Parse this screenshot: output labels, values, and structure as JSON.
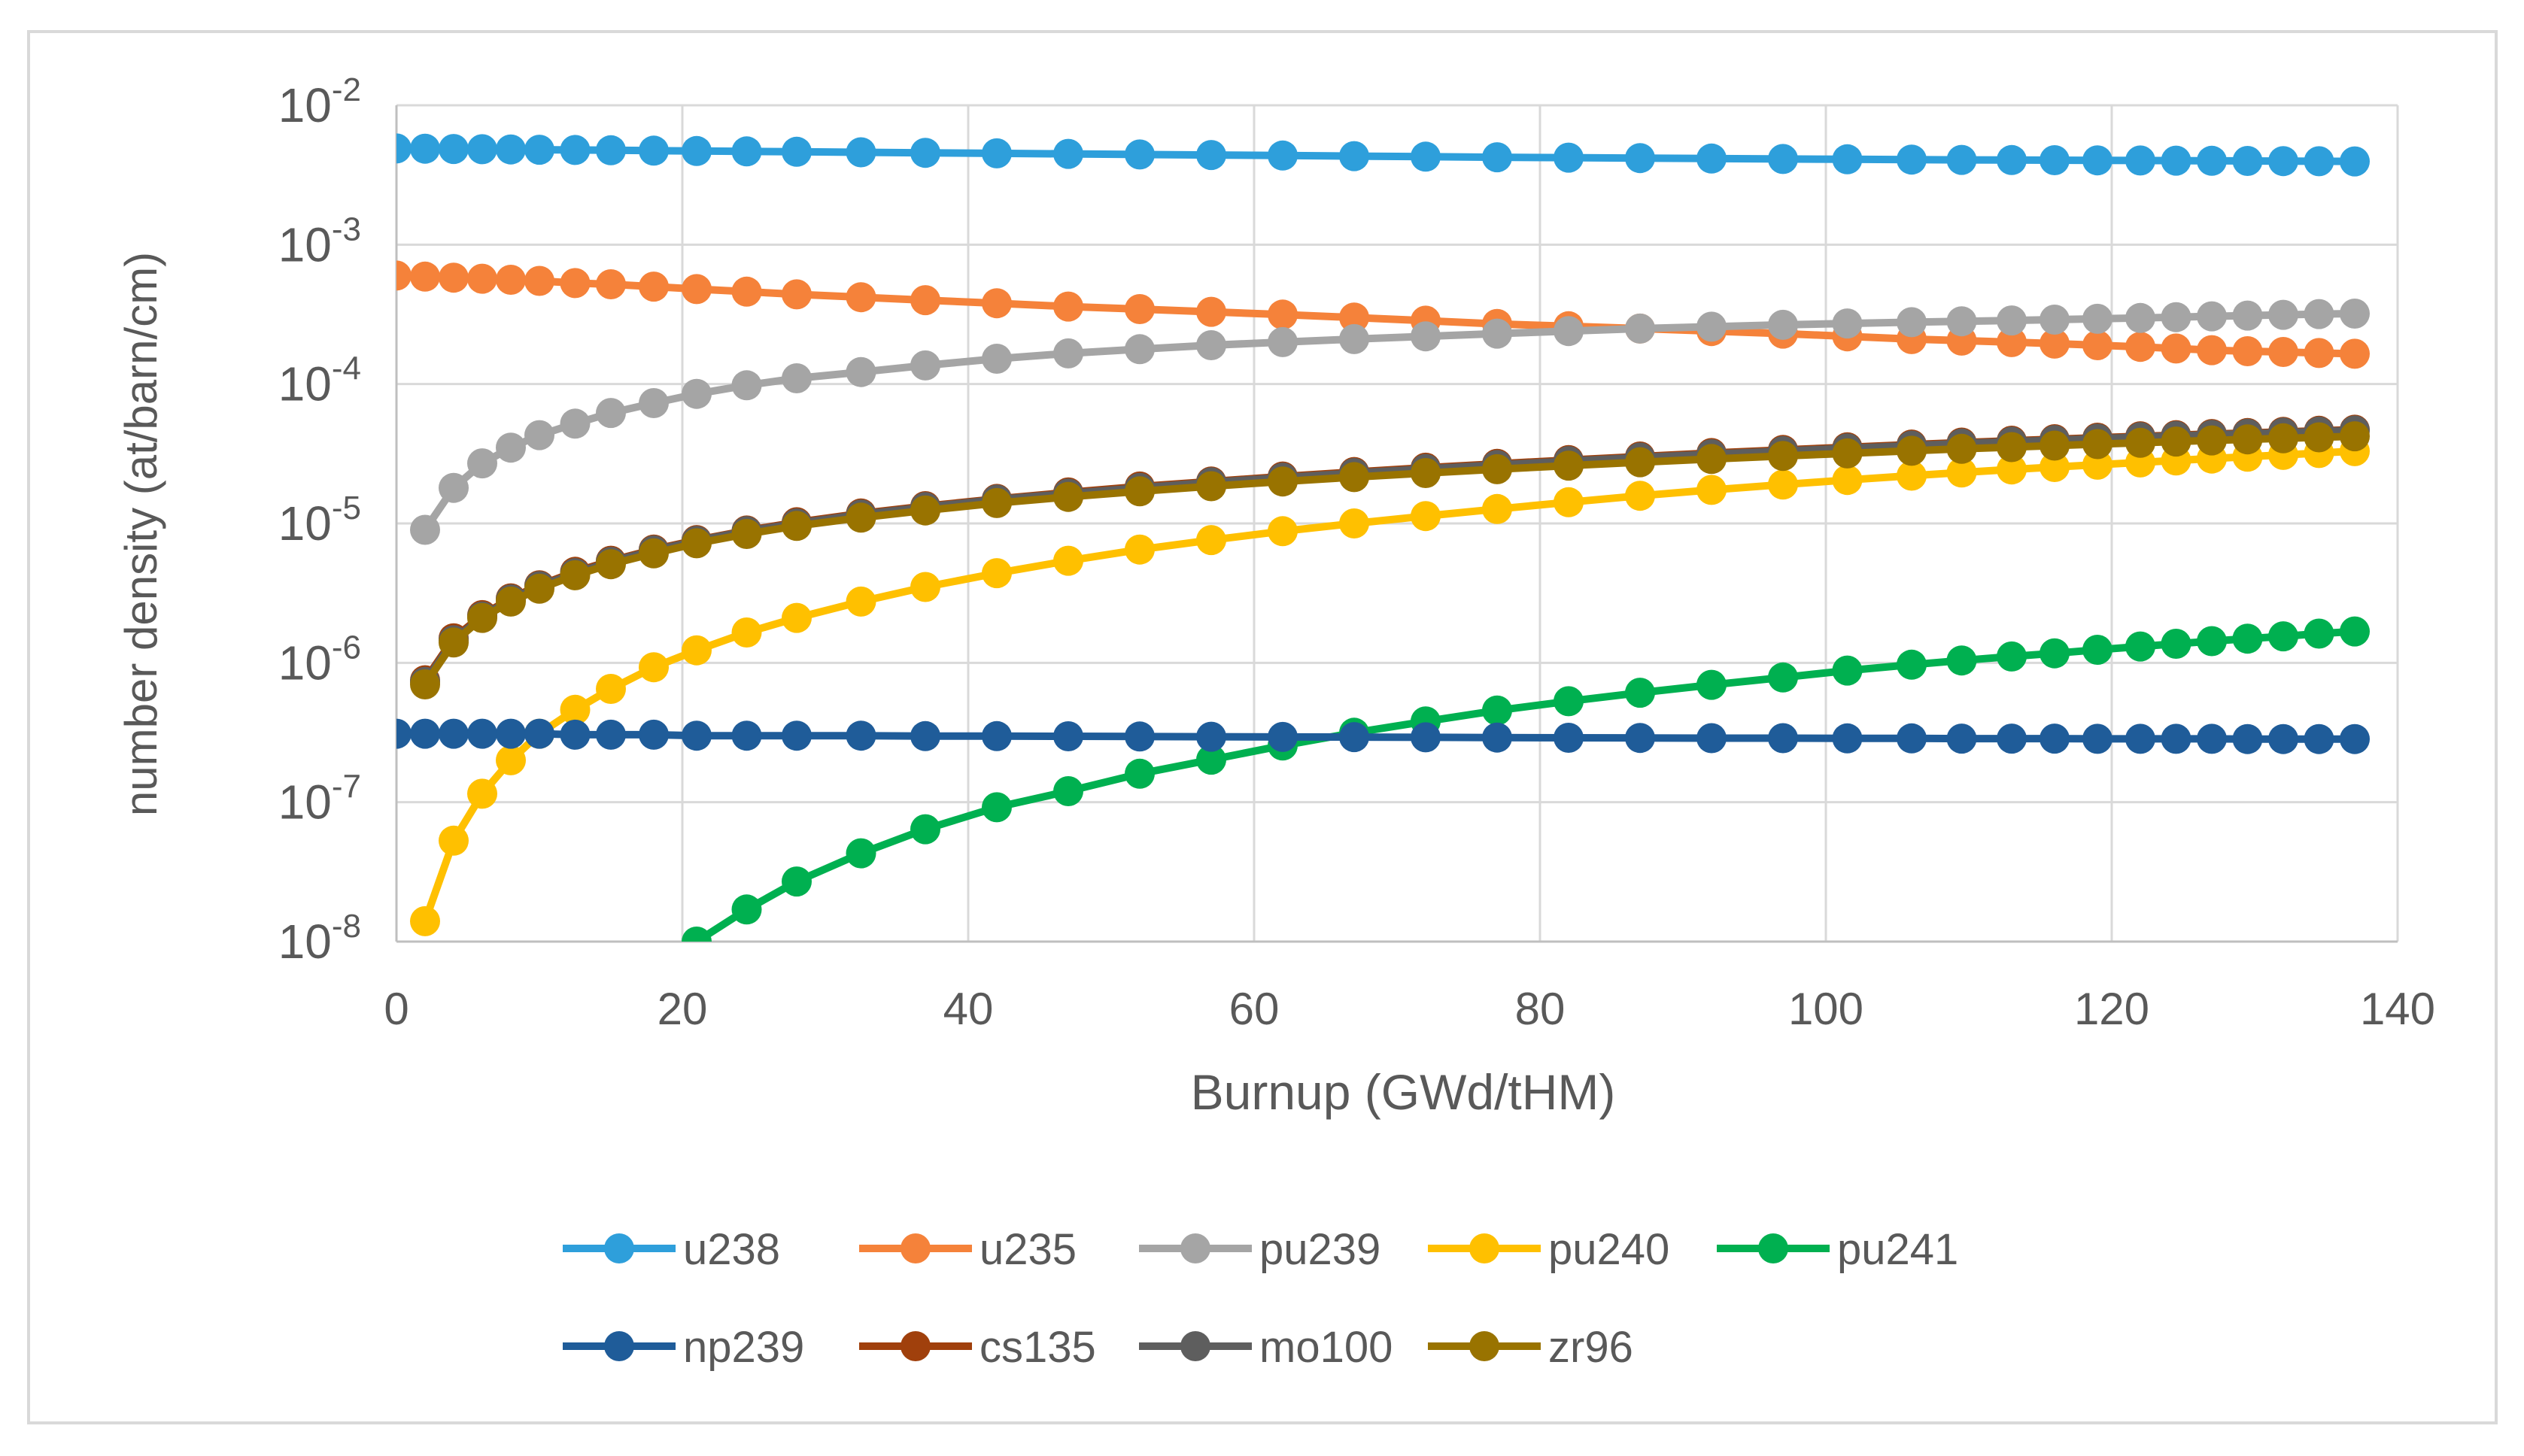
{
  "chart_data": {
    "type": "line",
    "title": "",
    "xlabel": "Burnup (GWd/tHM)",
    "ylabel": "number density (at/barn/cm)",
    "xlim": [
      0,
      140
    ],
    "x_ticks": [
      0,
      20,
      40,
      60,
      80,
      100,
      120,
      140
    ],
    "x_tick_labels": [
      "0",
      "20",
      "40",
      "60",
      "80",
      "100",
      "120",
      "140"
    ],
    "yscale": "log",
    "ylim": [
      1e-08,
      0.01
    ],
    "y_tick_exponents": [
      "-8",
      "-7",
      "-6",
      "-5",
      "-4",
      "-3",
      "-2"
    ],
    "y_tick_base": "10",
    "grid": true,
    "legend_position": "bottom",
    "x": [
      0,
      2,
      4,
      6,
      8,
      10,
      12.5,
      15,
      18,
      21,
      24.5,
      28,
      32.5,
      37,
      42,
      47,
      52,
      57,
      62,
      67,
      72,
      77,
      82,
      87,
      92,
      97,
      101.5,
      106,
      109.5,
      113,
      116,
      119,
      122,
      124.5,
      127,
      129.5,
      132,
      134.5,
      137
    ],
    "series": [
      {
        "name": "u238",
        "color": "#2E9FDB",
        "values": [
          0.0049,
          0.00488,
          0.00486,
          0.00484,
          0.00482,
          0.0048,
          0.00478,
          0.00476,
          0.00473,
          0.0047,
          0.00467,
          0.00464,
          0.0046,
          0.00456,
          0.00452,
          0.00448,
          0.00444,
          0.0044,
          0.00436,
          0.00432,
          0.00428,
          0.00424,
          0.00421,
          0.00418,
          0.00415,
          0.00412,
          0.0041,
          0.00408,
          0.00406,
          0.00405,
          0.00404,
          0.00403,
          0.00402,
          0.00401,
          0.004,
          0.00399,
          0.00398,
          0.00397,
          0.00396
        ]
      },
      {
        "name": "u235",
        "color": "#F5823A",
        "values": [
          0.0006,
          0.00059,
          0.00058,
          0.00057,
          0.00056,
          0.00055,
          0.00053,
          0.00052,
          0.0005,
          0.00048,
          0.00046,
          0.00044,
          0.00042,
          0.0004,
          0.00038,
          0.00036,
          0.000345,
          0.00033,
          0.000315,
          0.0003,
          0.000285,
          0.00027,
          0.00026,
          0.00025,
          0.00024,
          0.00023,
          0.00022,
          0.00021,
          0.000205,
          0.0002,
          0.000195,
          0.00019,
          0.000185,
          0.00018,
          0.000175,
          0.000172,
          0.00017,
          0.000167,
          0.000165
        ]
      },
      {
        "name": "pu239",
        "color": "#A5A5A5",
        "values": [
          null,
          9e-06,
          1.8e-05,
          2.7e-05,
          3.5e-05,
          4.3e-05,
          5.2e-05,
          6.2e-05,
          7.3e-05,
          8.5e-05,
          9.8e-05,
          0.00011,
          0.000122,
          0.000136,
          0.000152,
          0.000166,
          0.000178,
          0.00019,
          0.0002,
          0.00021,
          0.00022,
          0.00023,
          0.00024,
          0.00025,
          0.000258,
          0.000266,
          0.000272,
          0.000278,
          0.000282,
          0.000286,
          0.00029,
          0.000294,
          0.000298,
          0.000302,
          0.000306,
          0.00031,
          0.000314,
          0.000318,
          0.00032
        ]
      },
      {
        "name": "pu240",
        "color": "#FFC000",
        "values": [
          null,
          1.4e-08,
          5.3e-08,
          1.15e-07,
          2e-07,
          3.1e-07,
          4.6e-07,
          6.5e-07,
          9.3e-07,
          1.23e-06,
          1.65e-06,
          2.1e-06,
          2.75e-06,
          3.5e-06,
          4.4e-06,
          5.4e-06,
          6.5e-06,
          7.6e-06,
          8.8e-06,
          1e-05,
          1.13e-05,
          1.27e-05,
          1.42e-05,
          1.58e-05,
          1.74e-05,
          1.9e-05,
          2.05e-05,
          2.2e-05,
          2.32e-05,
          2.44e-05,
          2.54e-05,
          2.64e-05,
          2.74e-05,
          2.83e-05,
          2.92e-05,
          3.01e-05,
          3.1e-05,
          3.2e-05,
          3.3e-05
        ]
      },
      {
        "name": "pu241",
        "color": "#00B050",
        "values": [
          null,
          null,
          null,
          null,
          null,
          null,
          null,
          null,
          null,
          1e-08,
          1.7e-08,
          2.7e-08,
          4.3e-08,
          6.4e-08,
          9.2e-08,
          1.2e-07,
          1.6e-07,
          2.02e-07,
          2.55e-07,
          3.15e-07,
          3.8e-07,
          4.55e-07,
          5.3e-07,
          6.1e-07,
          6.95e-07,
          7.85e-07,
          8.8e-07,
          9.7e-07,
          1.04e-06,
          1.11e-06,
          1.17e-06,
          1.24e-06,
          1.31e-06,
          1.37e-06,
          1.43e-06,
          1.49e-06,
          1.55e-06,
          1.62e-06,
          1.68e-06
        ]
      },
      {
        "name": "np239",
        "color": "#1F5C99",
        "values": [
          3.1e-07,
          3.1e-07,
          3.1e-07,
          3.1e-07,
          3.1e-07,
          3.1e-07,
          3.05e-07,
          3.05e-07,
          3.05e-07,
          3e-07,
          3e-07,
          3e-07,
          3e-07,
          2.98e-07,
          2.98e-07,
          2.97e-07,
          2.96e-07,
          2.95e-07,
          2.94e-07,
          2.93e-07,
          2.92e-07,
          2.91e-07,
          2.9e-07,
          2.89e-07,
          2.88e-07,
          2.88e-07,
          2.87e-07,
          2.87e-07,
          2.86e-07,
          2.86e-07,
          2.86e-07,
          2.85e-07,
          2.85e-07,
          2.85e-07,
          2.85e-07,
          2.84e-07,
          2.84e-07,
          2.84e-07,
          2.84e-07
        ]
      },
      {
        "name": "cs135",
        "color": "#A0400C",
        "values": [
          null,
          7.5e-07,
          1.5e-06,
          2.2e-06,
          2.9e-06,
          3.6e-06,
          4.5e-06,
          5.4e-06,
          6.5e-06,
          7.6e-06,
          8.9e-06,
          1.02e-05,
          1.18e-05,
          1.33e-05,
          1.5e-05,
          1.67e-05,
          1.84e-05,
          2e-05,
          2.17e-05,
          2.34e-05,
          2.51e-05,
          2.68e-05,
          2.85e-05,
          3.02e-05,
          3.2e-05,
          3.37e-05,
          3.52e-05,
          3.68e-05,
          3.8e-05,
          3.92e-05,
          4.02e-05,
          4.12e-05,
          4.22e-05,
          4.3e-05,
          4.38e-05,
          4.46e-05,
          4.54e-05,
          4.62e-05,
          4.7e-05
        ]
      },
      {
        "name": "mo100",
        "color": "#5E5E5E",
        "values": [
          null,
          7.3e-07,
          1.45e-06,
          2.15e-06,
          2.85e-06,
          3.55e-06,
          4.4e-06,
          5.3e-06,
          6.4e-06,
          7.5e-06,
          8.8e-06,
          1e-05,
          1.16e-05,
          1.31e-05,
          1.48e-05,
          1.64e-05,
          1.8e-05,
          1.97e-05,
          2.13e-05,
          2.3e-05,
          2.46e-05,
          2.63e-05,
          2.8e-05,
          2.97e-05,
          3.14e-05,
          3.31e-05,
          3.46e-05,
          3.62e-05,
          3.74e-05,
          3.86e-05,
          3.96e-05,
          4.06e-05,
          4.16e-05,
          4.24e-05,
          4.32e-05,
          4.4e-05,
          4.48e-05,
          4.56e-05,
          4.64e-05
        ]
      },
      {
        "name": "zr96",
        "color": "#997300",
        "values": [
          null,
          7e-07,
          1.4e-06,
          2.1e-06,
          2.75e-06,
          3.4e-06,
          4.25e-06,
          5.1e-06,
          6.1e-06,
          7.2e-06,
          8.4e-06,
          9.6e-06,
          1.1e-05,
          1.24e-05,
          1.4e-05,
          1.55e-05,
          1.7e-05,
          1.85e-05,
          2e-05,
          2.15e-05,
          2.3e-05,
          2.45e-05,
          2.6e-05,
          2.75e-05,
          2.9e-05,
          3.05e-05,
          3.18e-05,
          3.32e-05,
          3.43e-05,
          3.53e-05,
          3.62e-05,
          3.71e-05,
          3.79e-05,
          3.87e-05,
          3.94e-05,
          4.01e-05,
          4.08e-05,
          4.15e-05,
          4.22e-05
        ]
      }
    ]
  }
}
